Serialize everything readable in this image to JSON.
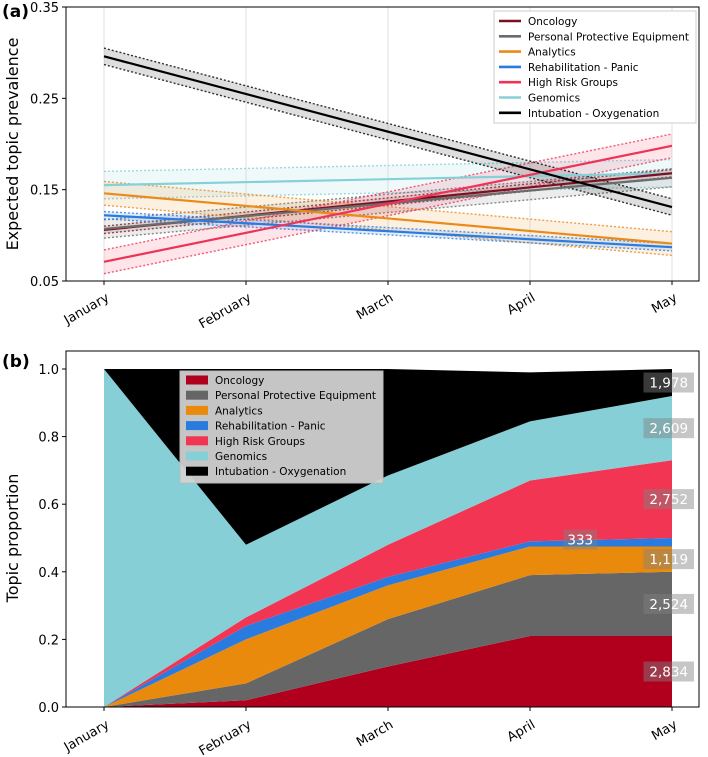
{
  "chart_data": [
    {
      "panel_label": "(a)",
      "type": "line",
      "title": "",
      "xlabel": "",
      "ylabel": "Expected topic prevalence",
      "categories": [
        "January",
        "February",
        "March",
        "April",
        "May"
      ],
      "ylim": [
        0.05,
        0.35
      ],
      "yticks": [
        "0.05",
        "0.15",
        "0.25",
        "0.35"
      ],
      "grid": "vertical",
      "legend_position": "top-right",
      "series": [
        {
          "name": "Oncology",
          "color": "#7a1020",
          "start": 0.106,
          "end": 0.168,
          "ci": 0.004
        },
        {
          "name": "Personal Protective Equipment",
          "color": "#6b6b6b",
          "start": 0.107,
          "end": 0.163,
          "ci": 0.01
        },
        {
          "name": "Analytics",
          "color": "#ea8a1a",
          "start": 0.146,
          "end": 0.091,
          "ci": 0.013
        },
        {
          "name": "Rehabilitation - Panic",
          "color": "#2a7be0",
          "start": 0.122,
          "end": 0.087,
          "ci": 0.004
        },
        {
          "name": "High Risk Groups",
          "color": "#ee3358",
          "start": 0.071,
          "end": 0.198,
          "ci": 0.013
        },
        {
          "name": "Genomics",
          "color": "#86d0d8",
          "start": 0.155,
          "end": 0.168,
          "ci": 0.015
        },
        {
          "name": "Intubation - Oxygenation",
          "color": "#000000",
          "start": 0.296,
          "end": 0.131,
          "ci": 0.009
        }
      ]
    },
    {
      "panel_label": "(b)",
      "type": "area",
      "title": "",
      "xlabel": "",
      "ylabel": "Topic proportion",
      "categories": [
        "January",
        "February",
        "March",
        "April",
        "May"
      ],
      "ylim": [
        0.0,
        1.0
      ],
      "yticks": [
        "0.0",
        "0.2",
        "0.4",
        "0.6",
        "0.8",
        "1.0"
      ],
      "legend_position": "top-left",
      "series": [
        {
          "name": "Oncology",
          "color": "#b0001e",
          "values": [
            0.0,
            0.02,
            0.12,
            0.21,
            0.21
          ],
          "label": "2,834"
        },
        {
          "name": "Personal Protective Equipment",
          "color": "#666666",
          "values": [
            0.0,
            0.05,
            0.14,
            0.18,
            0.19
          ],
          "label": "2,524"
        },
        {
          "name": "Analytics",
          "color": "#ea8a0c",
          "values": [
            0.0,
            0.13,
            0.1,
            0.085,
            0.075
          ],
          "label": "1,119"
        },
        {
          "name": "Rehabilitation - Panic",
          "color": "#2a7be0",
          "values": [
            0.0,
            0.04,
            0.025,
            0.015,
            0.025
          ],
          "label": "333"
        },
        {
          "name": "High Risk Groups",
          "color": "#f23552",
          "values": [
            0.0,
            0.025,
            0.095,
            0.18,
            0.23
          ],
          "label": "2,752"
        },
        {
          "name": "Genomics",
          "color": "#86cfd7",
          "values": [
            1.0,
            0.215,
            0.205,
            0.175,
            0.19
          ],
          "label": "2,609"
        },
        {
          "name": "Intubation - Oxygenation",
          "color": "#000000",
          "values": [
            0.0,
            0.52,
            0.315,
            0.145,
            0.08
          ],
          "label": "1,978"
        }
      ]
    }
  ]
}
